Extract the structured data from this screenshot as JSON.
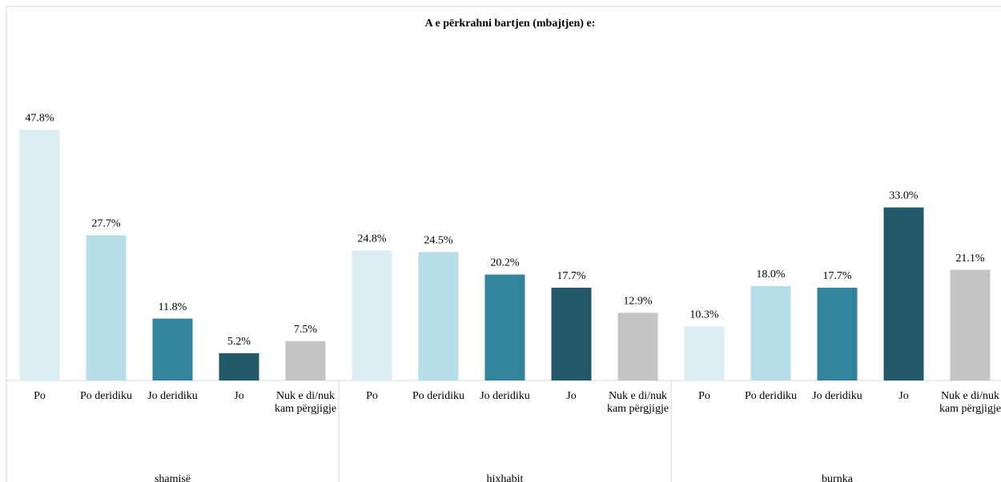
{
  "chart_data": {
    "type": "grouped-bar",
    "title": "A e përkrahni bartjen (mbajtjen) e:",
    "categories": [
      "Po",
      "Po deridiku",
      "Jo deridiku",
      "Jo",
      "Nuk e di/nuk kam përgjigje"
    ],
    "colors": [
      "#daeef3",
      "#b7dde8",
      "#31849b",
      "#215968",
      "#c4c4c4"
    ],
    "groups": [
      {
        "name": "shamisë",
        "values": [
          47.8,
          27.7,
          11.8,
          5.2,
          7.5
        ],
        "value_labels": [
          "47.8%",
          "27.7%",
          "11.8%",
          "5.2%",
          "7.5%"
        ]
      },
      {
        "name": "hixhabit",
        "values": [
          24.8,
          24.5,
          20.2,
          17.7,
          12.9
        ],
        "value_labels": [
          "24.8%",
          "24.5%",
          "20.2%",
          "17.7%",
          "12.9%"
        ]
      },
      {
        "name": "burnka",
        "values": [
          10.3,
          18.0,
          17.7,
          33.0,
          21.1
        ],
        "value_labels": [
          "10.3%",
          "18.0%",
          "17.7%",
          "33.0%",
          "21.1%"
        ]
      }
    ],
    "ylim": [
      0,
      50
    ]
  }
}
